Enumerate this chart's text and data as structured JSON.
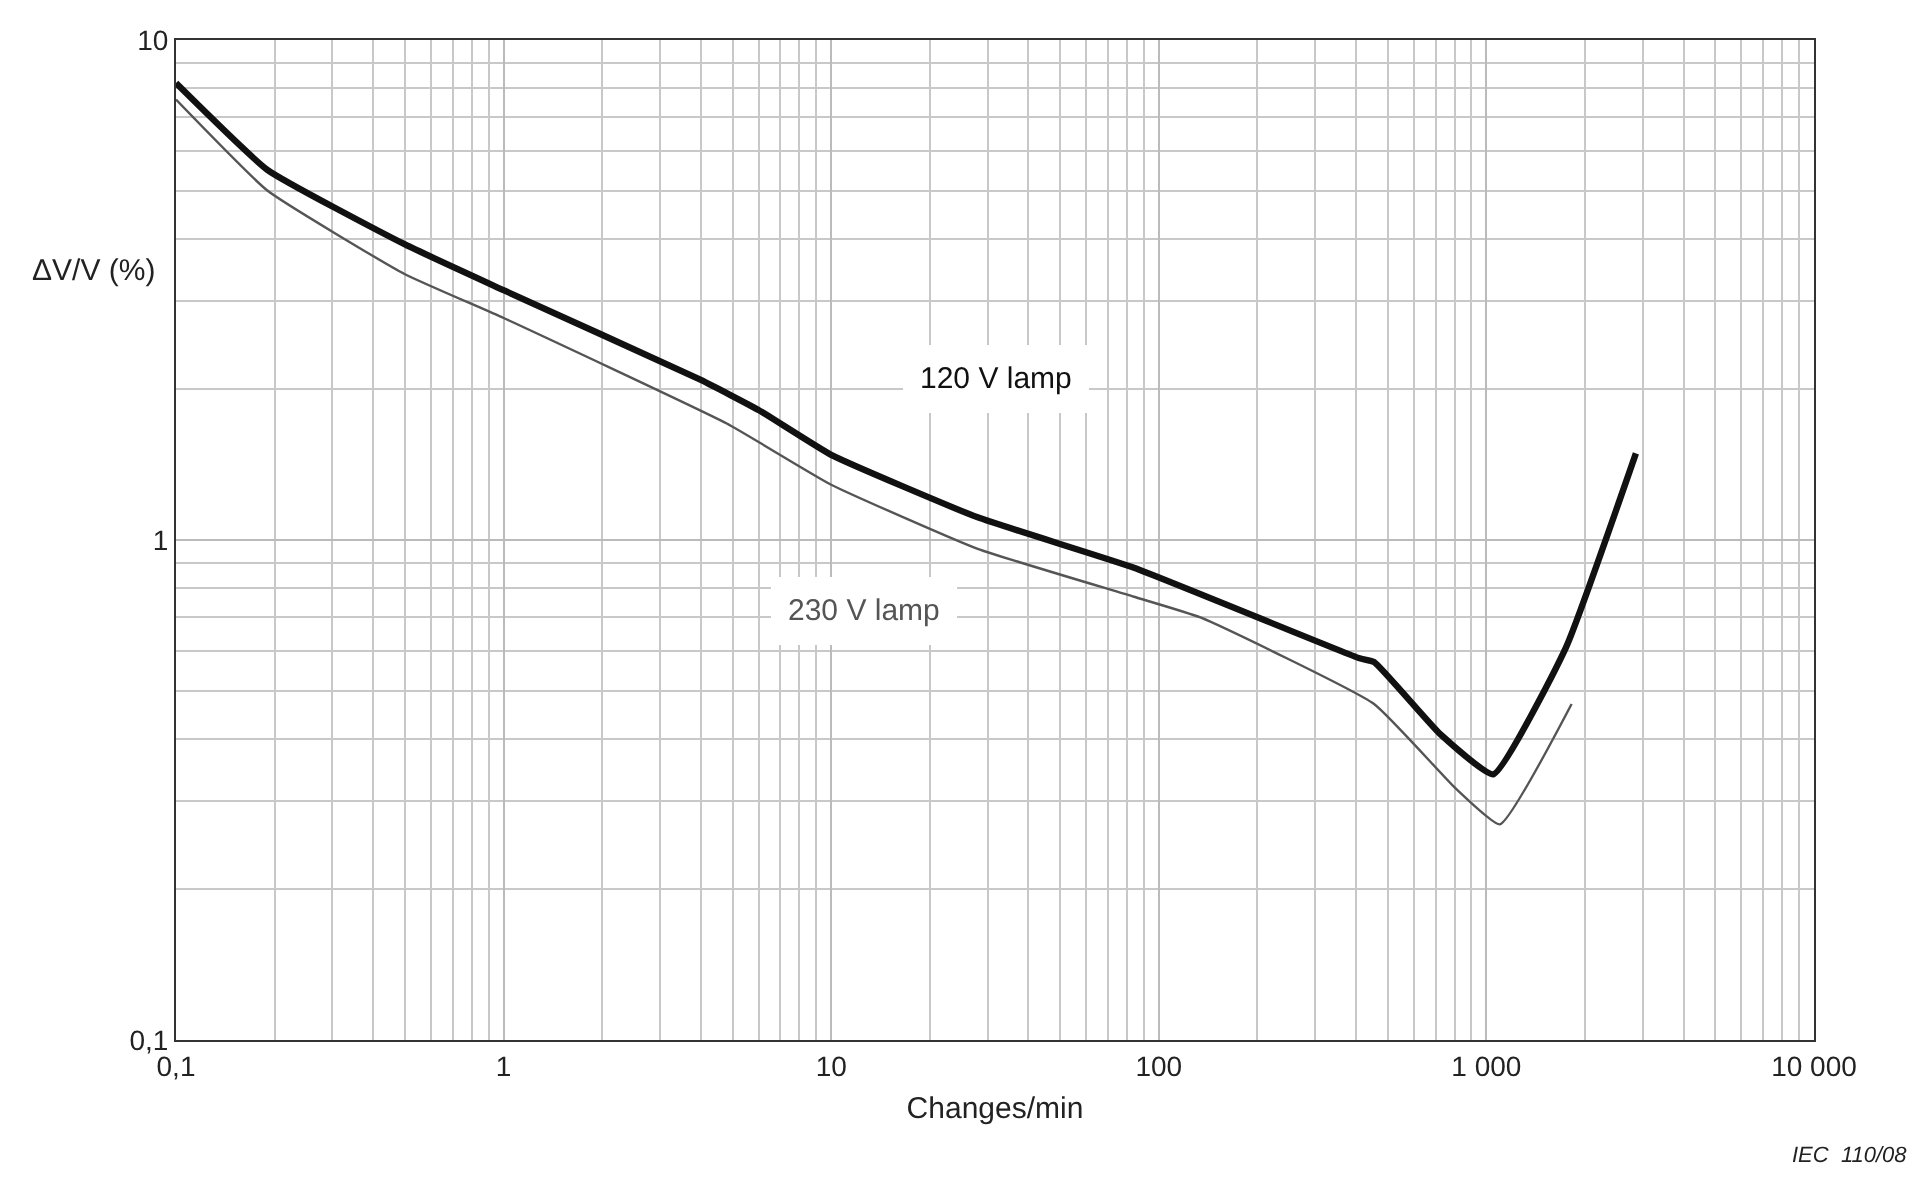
{
  "chart_data": {
    "type": "line",
    "xlabel": "Changes/min",
    "ylabel": "ΔV/V (%)",
    "log": "xy",
    "grid": true,
    "legend": false,
    "marker": "none",
    "line_style": "solid",
    "xlim": [
      0.1,
      10000
    ],
    "ylim": [
      0.1,
      10
    ],
    "xticks": [
      {
        "value": 0.1,
        "label": "0,1"
      },
      1,
      10,
      100,
      {
        "value": 1000,
        "label": "1 000"
      },
      {
        "value": 10000,
        "label": "10 000"
      }
    ],
    "yticks": [
      {
        "value": 0.1,
        "label": "0,1"
      },
      1,
      10
    ],
    "series": [
      {
        "name": "120 V lamp",
        "color": "#111111",
        "x": [
          0.1,
          0.19,
          0.5,
          1,
          4,
          6,
          10,
          28,
          84,
          410,
          454,
          720,
          1050,
          1750,
          2860
        ],
        "values": [
          8.2,
          5.5,
          3.9,
          3.16,
          2.09,
          1.82,
          1.48,
          1.11,
          0.88,
          0.58,
          0.57,
          0.41,
          0.34,
          0.61,
          1.49
        ]
      },
      {
        "name": "230 V lamp",
        "color": "#555555",
        "x": [
          0.1,
          0.19,
          0.5,
          1,
          4.8,
          10,
          28,
          84,
          134,
          454,
          800,
          1100,
          1820
        ],
        "values": [
          7.6,
          5.0,
          3.4,
          2.78,
          1.71,
          1.29,
          0.96,
          0.77,
          0.7,
          0.47,
          0.32,
          0.27,
          0.47
        ]
      }
    ],
    "annotations": [
      "IEC  110/08"
    ]
  }
}
